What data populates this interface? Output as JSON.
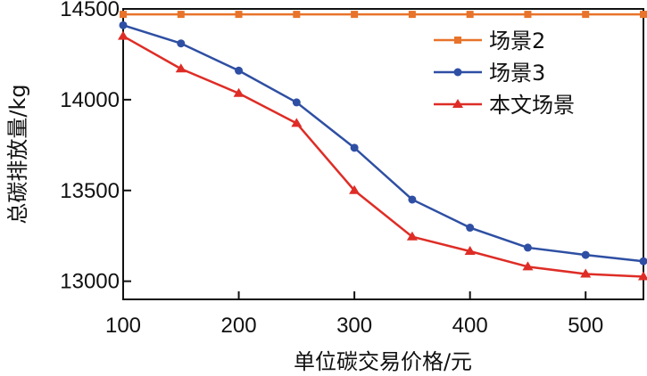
{
  "chart_data": {
    "type": "line",
    "title": "",
    "xlabel": "单位碳交易价格/元",
    "ylabel": "总碳排放量/kg",
    "x": [
      100,
      150,
      200,
      250,
      300,
      350,
      400,
      450,
      500,
      550
    ],
    "xlim": [
      100,
      550
    ],
    "ylim": [
      12900,
      14500
    ],
    "xticks": [
      100,
      200,
      300,
      400,
      500
    ],
    "yticks": [
      13000,
      13500,
      14000,
      14500
    ],
    "grid": false,
    "legend_position": "top-right",
    "series": [
      {
        "name": "场景2",
        "color": "#e8732a",
        "marker": "square",
        "values": [
          14470,
          14470,
          14470,
          14470,
          14470,
          14470,
          14470,
          14470,
          14470,
          14470
        ]
      },
      {
        "name": "场景3",
        "color": "#2e4fa3",
        "marker": "circle",
        "values": [
          14410,
          14310,
          14160,
          13985,
          13735,
          13450,
          13295,
          13185,
          13145,
          13110
        ]
      },
      {
        "name": "本文场景",
        "color": "#de2d26",
        "marker": "triangle",
        "values": [
          14350,
          14170,
          14035,
          13870,
          13500,
          13245,
          13165,
          13080,
          13040,
          13025
        ]
      }
    ]
  }
}
